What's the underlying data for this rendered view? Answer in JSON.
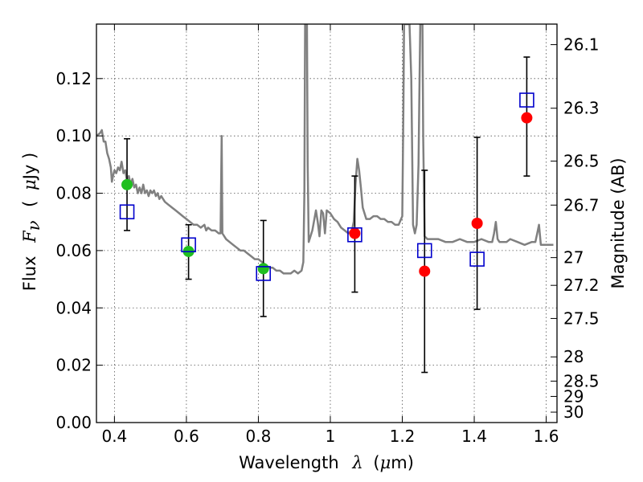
{
  "chart_data": {
    "type": "scatter",
    "xlabel_text": "Wavelength",
    "xlabel_symbol": "λ",
    "xlabel_unit_open": "(",
    "xlabel_unit_mu": "μ",
    "xlabel_unit_rest": "m)",
    "ylabel_text": "Flux",
    "ylabel_symbol": "F",
    "ylabel_sub": "ν",
    "ylabel_unit_open": "(",
    "ylabel_unit_mu": "μ",
    "ylabel_unit_rest": "Jy )",
    "y2label": "Magnitude (AB)",
    "xlim": [
      0.35,
      1.63
    ],
    "ylim": [
      0.0,
      0.139
    ],
    "grid": true,
    "x_ticks": [
      0.4,
      0.6,
      0.8,
      1.0,
      1.2,
      1.4,
      1.6
    ],
    "x_tick_labels": [
      "0.4",
      "0.6",
      "0.8",
      "1",
      "1.2",
      "1.4",
      "1.6"
    ],
    "y_ticks": [
      0.0,
      0.02,
      0.04,
      0.06,
      0.08,
      0.1,
      0.12
    ],
    "y_tick_labels": [
      "0.00",
      "0.02",
      "0.04",
      "0.06",
      "0.08",
      "0.10",
      "0.12"
    ],
    "mag_ticks": [
      26.1,
      26.3,
      26.5,
      26.7,
      27,
      27.2,
      27.5,
      28,
      28.5,
      29,
      30
    ],
    "mag_tick_labels": [
      "26.1",
      "26.3",
      "26.5",
      "26.7",
      "27",
      "27.2",
      "27.5",
      "28",
      "28.5",
      "29",
      "30"
    ],
    "colors": {
      "model": "#808080",
      "green": "#1fbf1f",
      "red": "#ff0000",
      "squares": "#0000cc",
      "errorbars": "#000000"
    },
    "model_spectrum": [
      [
        0.35,
        0.1
      ],
      [
        0.36,
        0.101
      ],
      [
        0.365,
        0.102
      ],
      [
        0.37,
        0.098
      ],
      [
        0.375,
        0.098
      ],
      [
        0.38,
        0.094
      ],
      [
        0.385,
        0.092
      ],
      [
        0.39,
        0.089
      ],
      [
        0.393,
        0.084
      ],
      [
        0.396,
        0.086
      ],
      [
        0.4,
        0.088
      ],
      [
        0.405,
        0.087
      ],
      [
        0.41,
        0.089
      ],
      [
        0.415,
        0.088
      ],
      [
        0.42,
        0.091
      ],
      [
        0.425,
        0.087
      ],
      [
        0.43,
        0.088
      ],
      [
        0.435,
        0.084
      ],
      [
        0.44,
        0.086
      ],
      [
        0.445,
        0.083
      ],
      [
        0.45,
        0.085
      ],
      [
        0.455,
        0.082
      ],
      [
        0.46,
        0.083
      ],
      [
        0.465,
        0.08
      ],
      [
        0.47,
        0.082
      ],
      [
        0.475,
        0.08
      ],
      [
        0.48,
        0.083
      ],
      [
        0.485,
        0.08
      ],
      [
        0.49,
        0.081
      ],
      [
        0.495,
        0.079
      ],
      [
        0.5,
        0.081
      ],
      [
        0.505,
        0.08
      ],
      [
        0.51,
        0.081
      ],
      [
        0.515,
        0.079
      ],
      [
        0.52,
        0.08
      ],
      [
        0.525,
        0.078
      ],
      [
        0.53,
        0.079
      ],
      [
        0.54,
        0.077
      ],
      [
        0.55,
        0.076
      ],
      [
        0.56,
        0.075
      ],
      [
        0.57,
        0.074
      ],
      [
        0.58,
        0.073
      ],
      [
        0.59,
        0.072
      ],
      [
        0.6,
        0.071
      ],
      [
        0.61,
        0.07
      ],
      [
        0.62,
        0.069
      ],
      [
        0.63,
        0.069
      ],
      [
        0.64,
        0.068
      ],
      [
        0.65,
        0.069
      ],
      [
        0.655,
        0.067
      ],
      [
        0.66,
        0.068
      ],
      [
        0.67,
        0.067
      ],
      [
        0.68,
        0.067
      ],
      [
        0.69,
        0.066
      ],
      [
        0.695,
        0.066
      ],
      [
        0.698,
        0.1
      ],
      [
        0.7,
        0.066
      ],
      [
        0.71,
        0.064
      ],
      [
        0.72,
        0.063
      ],
      [
        0.73,
        0.062
      ],
      [
        0.74,
        0.061
      ],
      [
        0.75,
        0.06
      ],
      [
        0.76,
        0.06
      ],
      [
        0.77,
        0.059
      ],
      [
        0.78,
        0.058
      ],
      [
        0.79,
        0.057
      ],
      [
        0.8,
        0.057
      ],
      [
        0.81,
        0.056
      ],
      [
        0.82,
        0.055
      ],
      [
        0.83,
        0.054
      ],
      [
        0.84,
        0.054
      ],
      [
        0.85,
        0.053
      ],
      [
        0.86,
        0.053
      ],
      [
        0.87,
        0.052
      ],
      [
        0.88,
        0.052
      ],
      [
        0.89,
        0.052
      ],
      [
        0.9,
        0.053
      ],
      [
        0.91,
        0.052
      ],
      [
        0.92,
        0.053
      ],
      [
        0.925,
        0.056
      ],
      [
        0.928,
        0.08
      ],
      [
        0.93,
        0.139
      ],
      [
        0.935,
        0.139
      ],
      [
        0.937,
        0.09
      ],
      [
        0.94,
        0.063
      ],
      [
        0.95,
        0.067
      ],
      [
        0.96,
        0.074
      ],
      [
        0.965,
        0.07
      ],
      [
        0.97,
        0.065
      ],
      [
        0.975,
        0.074
      ],
      [
        0.98,
        0.073
      ],
      [
        0.985,
        0.066
      ],
      [
        0.99,
        0.074
      ],
      [
        1.0,
        0.073
      ],
      [
        1.01,
        0.071
      ],
      [
        1.02,
        0.07
      ],
      [
        1.03,
        0.068
      ],
      [
        1.04,
        0.067
      ],
      [
        1.05,
        0.066
      ],
      [
        1.06,
        0.067
      ],
      [
        1.065,
        0.07
      ],
      [
        1.07,
        0.083
      ],
      [
        1.075,
        0.092
      ],
      [
        1.08,
        0.088
      ],
      [
        1.085,
        0.082
      ],
      [
        1.09,
        0.075
      ],
      [
        1.1,
        0.071
      ],
      [
        1.11,
        0.071
      ],
      [
        1.12,
        0.072
      ],
      [
        1.13,
        0.072
      ],
      [
        1.14,
        0.071
      ],
      [
        1.15,
        0.071
      ],
      [
        1.16,
        0.07
      ],
      [
        1.17,
        0.07
      ],
      [
        1.18,
        0.069
      ],
      [
        1.19,
        0.069
      ],
      [
        1.2,
        0.072
      ],
      [
        1.203,
        0.11
      ],
      [
        1.205,
        0.139
      ],
      [
        1.22,
        0.139
      ],
      [
        1.225,
        0.12
      ],
      [
        1.228,
        0.09
      ],
      [
        1.23,
        0.069
      ],
      [
        1.235,
        0.066
      ],
      [
        1.24,
        0.069
      ],
      [
        1.245,
        0.09
      ],
      [
        1.248,
        0.12
      ],
      [
        1.25,
        0.139
      ],
      [
        1.256,
        0.139
      ],
      [
        1.258,
        0.1
      ],
      [
        1.262,
        0.065
      ],
      [
        1.27,
        0.064
      ],
      [
        1.28,
        0.064
      ],
      [
        1.3,
        0.064
      ],
      [
        1.32,
        0.063
      ],
      [
        1.34,
        0.063
      ],
      [
        1.36,
        0.064
      ],
      [
        1.38,
        0.063
      ],
      [
        1.4,
        0.063
      ],
      [
        1.42,
        0.064
      ],
      [
        1.44,
        0.063
      ],
      [
        1.45,
        0.063
      ],
      [
        1.455,
        0.066
      ],
      [
        1.46,
        0.07
      ],
      [
        1.465,
        0.064
      ],
      [
        1.47,
        0.063
      ],
      [
        1.49,
        0.063
      ],
      [
        1.5,
        0.064
      ],
      [
        1.52,
        0.063
      ],
      [
        1.54,
        0.062
      ],
      [
        1.56,
        0.063
      ],
      [
        1.57,
        0.063
      ],
      [
        1.575,
        0.066
      ],
      [
        1.58,
        0.069
      ],
      [
        1.585,
        0.062
      ],
      [
        1.6,
        0.062
      ],
      [
        1.62,
        0.062
      ]
    ],
    "green_points": [
      {
        "x": 0.435,
        "y": 0.083
      },
      {
        "x": 0.606,
        "y": 0.0597
      },
      {
        "x": 0.814,
        "y": 0.0537
      }
    ],
    "red_points": [
      {
        "x": 1.068,
        "y": 0.066
      },
      {
        "x": 1.262,
        "y": 0.0528
      },
      {
        "x": 1.408,
        "y": 0.0695
      },
      {
        "x": 1.546,
        "y": 0.1063
      }
    ],
    "square_points": [
      {
        "x": 0.435,
        "y": 0.0735
      },
      {
        "x": 0.606,
        "y": 0.062
      },
      {
        "x": 0.814,
        "y": 0.052
      },
      {
        "x": 1.068,
        "y": 0.0655
      },
      {
        "x": 1.262,
        "y": 0.06
      },
      {
        "x": 1.408,
        "y": 0.057
      },
      {
        "x": 1.546,
        "y": 0.1125
      }
    ],
    "error_bars": [
      {
        "x": 0.435,
        "lo": 0.067,
        "hi": 0.099
      },
      {
        "x": 0.606,
        "lo": 0.05,
        "hi": 0.069
      },
      {
        "x": 0.814,
        "lo": 0.037,
        "hi": 0.0705
      },
      {
        "x": 1.068,
        "lo": 0.0455,
        "hi": 0.086
      },
      {
        "x": 1.262,
        "lo": 0.0175,
        "hi": 0.088
      },
      {
        "x": 1.408,
        "lo": 0.0395,
        "hi": 0.0995
      },
      {
        "x": 1.546,
        "lo": 0.086,
        "hi": 0.1275
      }
    ]
  }
}
